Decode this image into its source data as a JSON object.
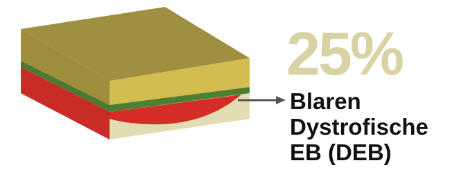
{
  "stat": {
    "value": "25%",
    "label_lines": [
      "Blaren",
      "Dystrofische",
      "EB (DEB)"
    ]
  }
}
